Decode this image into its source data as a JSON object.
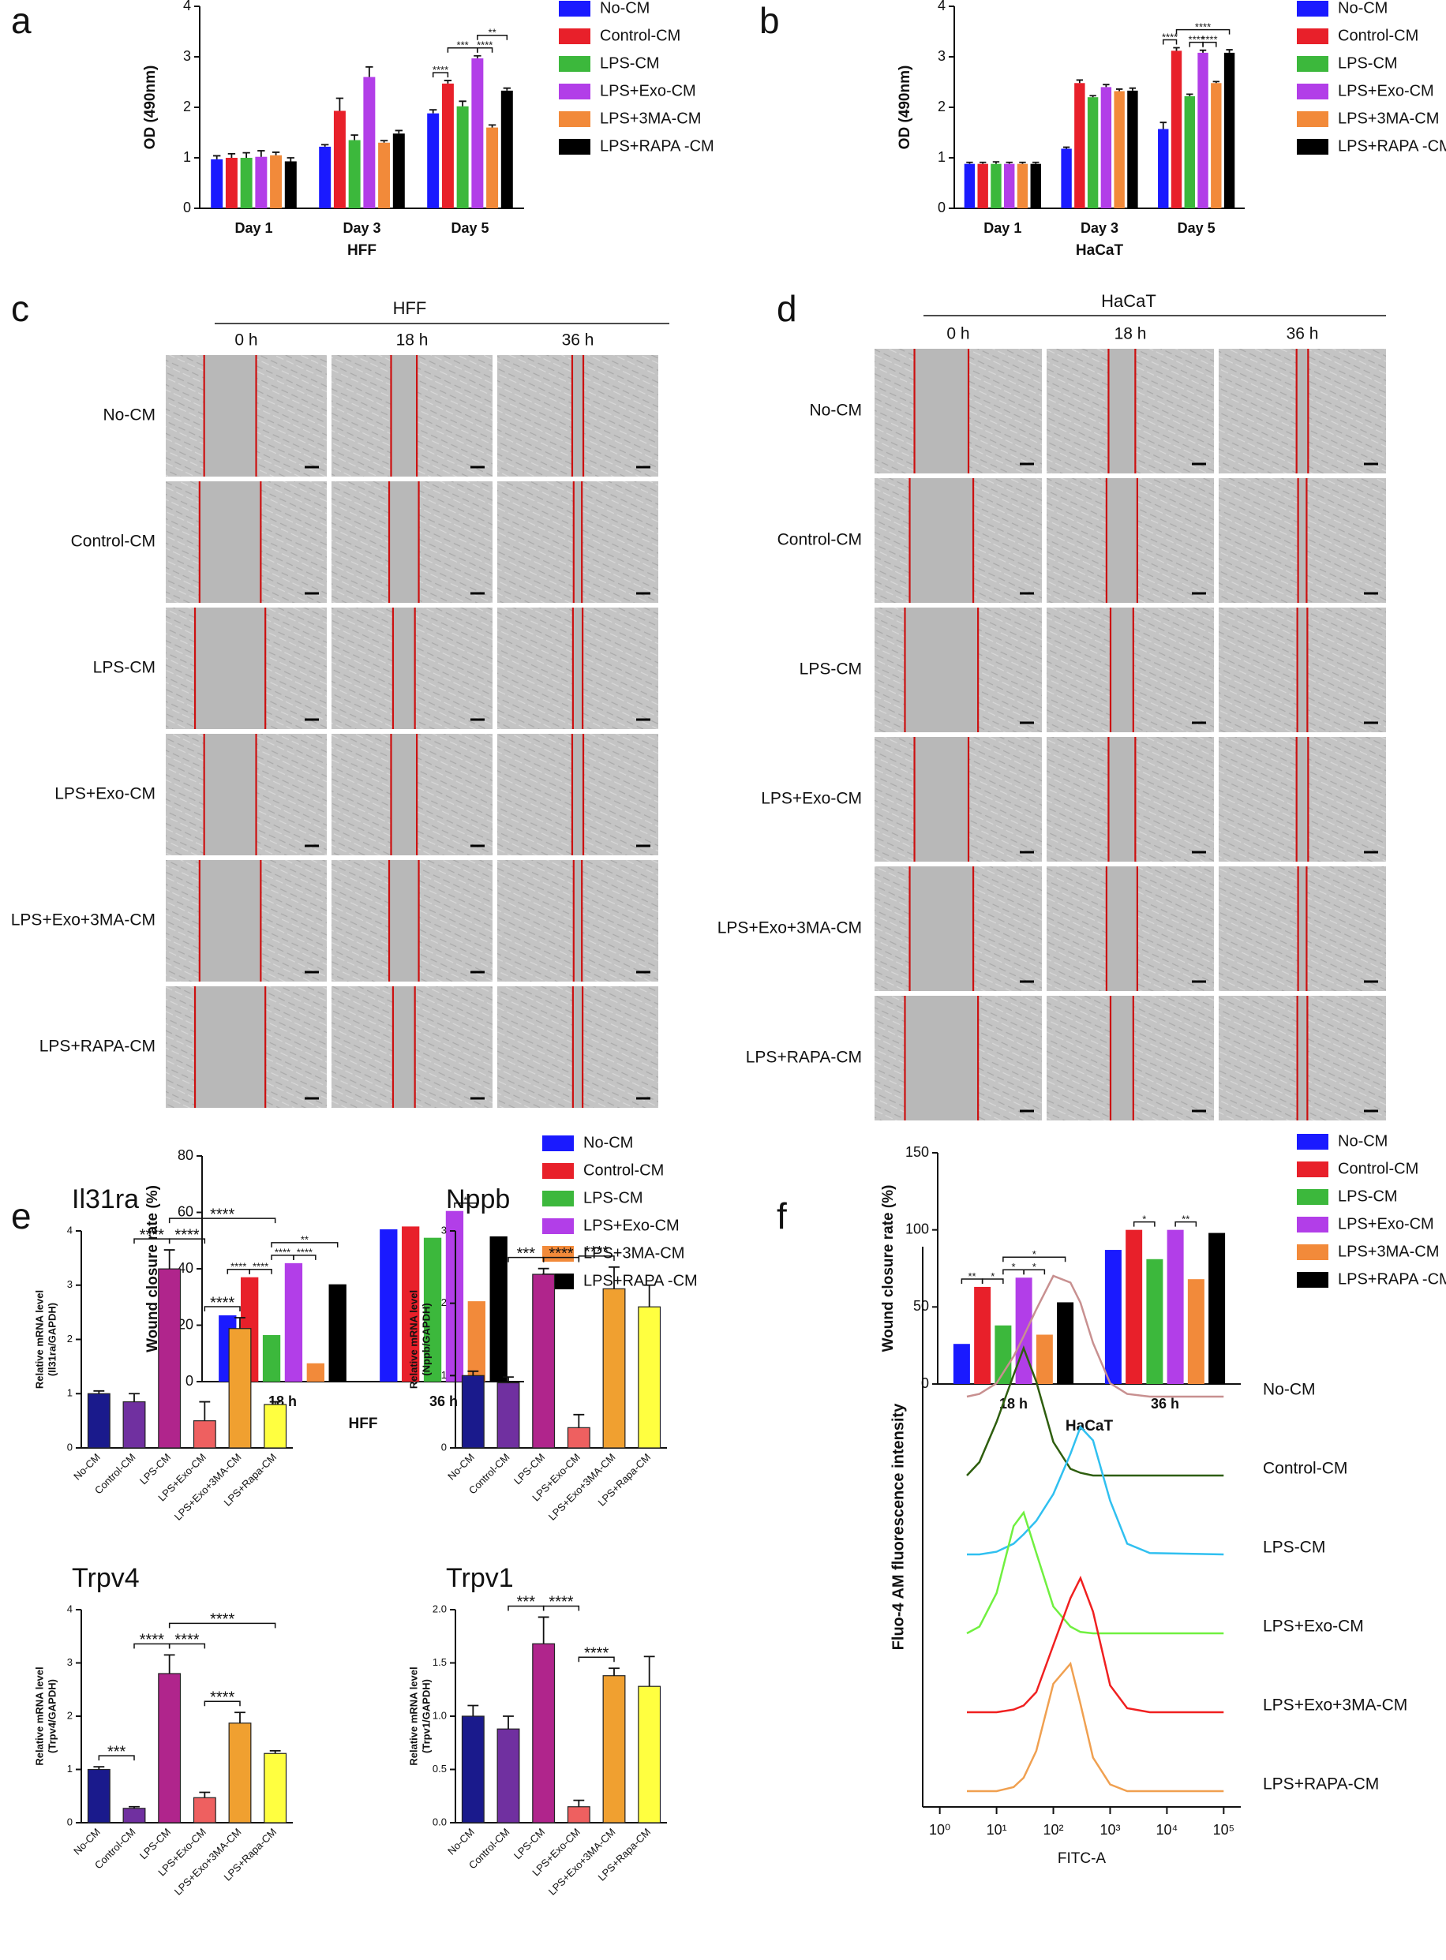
{
  "panel_labels": [
    "a",
    "b",
    "c",
    "d",
    "e",
    "f"
  ],
  "chart_data": [
    {
      "type": "bar",
      "ylabel": "OD (490nm)",
      "xlabel": "HFF",
      "categories": [
        "Day 1",
        "Day 3",
        "Day 5"
      ],
      "ylim": [
        0,
        4
      ],
      "yticks": [
        0,
        1,
        2,
        3,
        4
      ],
      "series": [
        {
          "name": "No-CM",
          "color": "#1a1aff",
          "values": [
            0.97,
            1.22,
            1.88
          ],
          "errors": [
            0.07,
            0.04,
            0.07
          ]
        },
        {
          "name": "Control-CM",
          "color": "#e8202a",
          "values": [
            1.0,
            1.93,
            2.47
          ],
          "errors": [
            0.08,
            0.25,
            0.06
          ]
        },
        {
          "name": "LPS-CM",
          "color": "#3cb83c",
          "values": [
            1.0,
            1.35,
            2.02
          ],
          "errors": [
            0.1,
            0.1,
            0.1
          ]
        },
        {
          "name": "LPS+Exo-CM",
          "color": "#b23ee8",
          "values": [
            1.02,
            2.6,
            2.97
          ],
          "errors": [
            0.12,
            0.2,
            0.05
          ]
        },
        {
          "name": "LPS+3MA-CM",
          "color": "#f28a3a",
          "values": [
            1.05,
            1.3,
            1.6
          ],
          "errors": [
            0.06,
            0.04,
            0.05
          ]
        },
        {
          "name": "LPS+RAPA -CM",
          "color": "#000000",
          "values": [
            0.93,
            1.48,
            2.33
          ],
          "errors": [
            0.07,
            0.06,
            0.05
          ]
        }
      ],
      "annotations": [
        {
          "category": 2,
          "between": [
            0,
            1
          ],
          "text": "****"
        },
        {
          "category": 2,
          "between": [
            1,
            3
          ],
          "text": "***"
        },
        {
          "category": 2,
          "between": [
            3,
            4
          ],
          "text": "****"
        },
        {
          "category": 2,
          "between": [
            3,
            5
          ],
          "text": "**"
        }
      ]
    },
    {
      "type": "bar",
      "ylabel": "OD (490nm)",
      "xlabel": "HaCaT",
      "categories": [
        "Day 1",
        "Day 3",
        "Day 5"
      ],
      "ylim": [
        0,
        4
      ],
      "yticks": [
        0,
        1,
        2,
        3,
        4
      ],
      "series": [
        {
          "name": "No-CM",
          "color": "#1a1aff",
          "values": [
            0.88,
            1.18,
            1.57
          ],
          "errors": [
            0.03,
            0.03,
            0.13
          ]
        },
        {
          "name": "Control-CM",
          "color": "#e8202a",
          "values": [
            0.88,
            2.48,
            3.12
          ],
          "errors": [
            0.03,
            0.06,
            0.06
          ]
        },
        {
          "name": "LPS-CM",
          "color": "#3cb83c",
          "values": [
            0.88,
            2.2,
            2.22
          ],
          "errors": [
            0.04,
            0.03,
            0.04
          ]
        },
        {
          "name": "LPS+Exo-CM",
          "color": "#b23ee8",
          "values": [
            0.88,
            2.4,
            3.08
          ],
          "errors": [
            0.03,
            0.05,
            0.05
          ]
        },
        {
          "name": "LPS+3MA-CM",
          "color": "#f28a3a",
          "values": [
            0.88,
            2.32,
            2.48
          ],
          "errors": [
            0.03,
            0.04,
            0.03
          ]
        },
        {
          "name": "LPS+RAPA -CM",
          "color": "#000000",
          "values": [
            0.88,
            2.33,
            3.08
          ],
          "errors": [
            0.03,
            0.05,
            0.06
          ]
        }
      ],
      "annotations": [
        {
          "category": 2,
          "between": [
            0,
            1
          ],
          "text": "****"
        },
        {
          "category": 2,
          "between": [
            2,
            3
          ],
          "text": "****"
        },
        {
          "category": 2,
          "between": [
            3,
            4
          ],
          "text": "****"
        },
        {
          "category": 2,
          "between": [
            1,
            5
          ],
          "text": "****"
        }
      ]
    },
    {
      "type": "bar",
      "ylabel": "Wound closure rate (%)",
      "xlabel": "HFF",
      "categories": [
        "18 h",
        "36 h"
      ],
      "ylim": [
        0,
        80
      ],
      "yticks": [
        0,
        20,
        40,
        60,
        80
      ],
      "series": [
        {
          "name": "No-CM",
          "color": "#1a1aff",
          "values": [
            23.5,
            54
          ]
        },
        {
          "name": "Control-CM",
          "color": "#e8202a",
          "values": [
            37,
            55
          ]
        },
        {
          "name": "LPS-CM",
          "color": "#3cb83c",
          "values": [
            16.5,
            51
          ]
        },
        {
          "name": "LPS+Exo-CM",
          "color": "#b23ee8",
          "values": [
            42,
            60.5
          ]
        },
        {
          "name": "LPS+3MA-CM",
          "color": "#f28a3a",
          "values": [
            6.5,
            28.5
          ]
        },
        {
          "name": "LPS+RAPA -CM",
          "color": "#000000",
          "values": [
            34.5,
            51.5
          ]
        }
      ],
      "annotations": [
        {
          "category": 0,
          "between": [
            0,
            1
          ],
          "text": "****"
        },
        {
          "category": 0,
          "between": [
            1,
            2
          ],
          "text": "****"
        },
        {
          "category": 0,
          "between": [
            2,
            3
          ],
          "text": "****"
        },
        {
          "category": 0,
          "between": [
            3,
            4
          ],
          "text": "****"
        },
        {
          "category": 0,
          "between": [
            2,
            5
          ],
          "text": "**"
        },
        {
          "category": 1,
          "between": [
            3,
            4
          ],
          "text": "*"
        }
      ]
    },
    {
      "type": "bar",
      "ylabel": "Wound closure rate (%)",
      "xlabel": "HaCaT",
      "categories": [
        "18 h",
        "36 h"
      ],
      "ylim": [
        0,
        150
      ],
      "yticks": [
        0,
        50,
        100,
        150
      ],
      "series": [
        {
          "name": "No-CM",
          "color": "#1a1aff",
          "values": [
            26,
            87
          ]
        },
        {
          "name": "Control-CM",
          "color": "#e8202a",
          "values": [
            63,
            100
          ]
        },
        {
          "name": "LPS-CM",
          "color": "#3cb83c",
          "values": [
            38,
            81
          ]
        },
        {
          "name": "LPS+Exo-CM",
          "color": "#b23ee8",
          "values": [
            69,
            100
          ]
        },
        {
          "name": "LPS+3MA-CM",
          "color": "#f28a3a",
          "values": [
            32,
            68
          ]
        },
        {
          "name": "LPS+RAPA -CM",
          "color": "#000000",
          "values": [
            53,
            98
          ]
        }
      ],
      "annotations": [
        {
          "category": 0,
          "between": [
            0,
            1
          ],
          "text": "**"
        },
        {
          "category": 0,
          "between": [
            1,
            2
          ],
          "text": "*"
        },
        {
          "category": 0,
          "between": [
            2,
            3
          ],
          "text": "*"
        },
        {
          "category": 0,
          "between": [
            3,
            4
          ],
          "text": "*"
        },
        {
          "category": 0,
          "between": [
            2,
            5
          ],
          "text": "*"
        },
        {
          "category": 1,
          "between": [
            1,
            2
          ],
          "text": "*"
        },
        {
          "category": 1,
          "between": [
            3,
            4
          ],
          "text": "**"
        }
      ]
    },
    {
      "type": "bar",
      "title": "Il31ra",
      "ylabel": [
        "Relative mRNA level",
        "(Il31ra/GAPDH)"
      ],
      "categories": [
        "No-CM",
        "Control-CM",
        "LPS-CM",
        "LPS+Exo-CM",
        "LPS+Exo+3MA-CM",
        "LPS+Rapa-CM"
      ],
      "colors": [
        "#1a1a8c",
        "#7030a0",
        "#b0258c",
        "#ee6060",
        "#f0a030",
        "#ffff40"
      ],
      "values": [
        1.0,
        0.85,
        3.3,
        0.5,
        2.2,
        0.8
      ],
      "errors": [
        0.05,
        0.15,
        0.35,
        0.35,
        0.2,
        0.05
      ],
      "ylim": [
        0,
        4
      ],
      "yticks": [
        0,
        1,
        2,
        3,
        4
      ],
      "annotations": [
        {
          "between": [
            1,
            2
          ],
          "text": "****"
        },
        {
          "between": [
            2,
            3
          ],
          "text": "****"
        },
        {
          "between": [
            3,
            4
          ],
          "text": "****"
        },
        {
          "between": [
            2,
            5
          ],
          "text": "****"
        }
      ]
    },
    {
      "type": "bar",
      "title": "Nppb",
      "ylabel": [
        "Relative mRNA level",
        "(Nppb/GAPDH)"
      ],
      "categories": [
        "No-CM",
        "Control-CM",
        "LPS-CM",
        "LPS+Exo-CM",
        "LPS+Exo+3MA-CM",
        "LPS+Rapa-CM"
      ],
      "colors": [
        "#1a1a8c",
        "#7030a0",
        "#b0258c",
        "#ee6060",
        "#f0a030",
        "#ffff40"
      ],
      "values": [
        1.0,
        0.9,
        2.4,
        0.28,
        2.2,
        1.95
      ],
      "errors": [
        0.06,
        0.08,
        0.08,
        0.18,
        0.3,
        0.3
      ],
      "ylim": [
        0,
        3
      ],
      "yticks": [
        0,
        1,
        2,
        3
      ],
      "annotations": [
        {
          "between": [
            1,
            2
          ],
          "text": "***"
        },
        {
          "between": [
            2,
            3
          ],
          "text": "****"
        },
        {
          "between": [
            3,
            4
          ],
          "text": "****"
        }
      ]
    },
    {
      "type": "bar",
      "title": "Trpv4",
      "ylabel": [
        "Relative mRNA level",
        "(Trpv4/GAPDH)"
      ],
      "categories": [
        "No-CM",
        "Control-CM",
        "LPS-CM",
        "LPS+Exo-CM",
        "LPS+Exo+3MA-CM",
        "LPS+Rapa-CM"
      ],
      "colors": [
        "#1a1a8c",
        "#7030a0",
        "#b0258c",
        "#ee6060",
        "#f0a030",
        "#ffff40"
      ],
      "values": [
        1.0,
        0.27,
        2.8,
        0.47,
        1.87,
        1.3
      ],
      "errors": [
        0.05,
        0.03,
        0.35,
        0.1,
        0.2,
        0.05
      ],
      "ylim": [
        0,
        4
      ],
      "yticks": [
        0,
        1,
        2,
        3,
        4
      ],
      "annotations": [
        {
          "between": [
            0,
            1
          ],
          "text": "***"
        },
        {
          "between": [
            1,
            2
          ],
          "text": "****"
        },
        {
          "between": [
            2,
            3
          ],
          "text": "****"
        },
        {
          "between": [
            3,
            4
          ],
          "text": "****"
        },
        {
          "between": [
            2,
            5
          ],
          "text": "****"
        }
      ]
    },
    {
      "type": "bar",
      "title": "Trpv1",
      "ylabel": [
        "Relative mRNA level",
        "(Trpv1/GAPDH)"
      ],
      "categories": [
        "No-CM",
        "Control-CM",
        "LPS-CM",
        "LPS+Exo-CM",
        "LPS+Exo+3MA-CM",
        "LPS+Rapa-CM"
      ],
      "colors": [
        "#1a1a8c",
        "#7030a0",
        "#b0258c",
        "#ee6060",
        "#f0a030",
        "#ffff40"
      ],
      "values": [
        1.0,
        0.88,
        1.68,
        0.15,
        1.38,
        1.28
      ],
      "errors": [
        0.1,
        0.12,
        0.25,
        0.06,
        0.07,
        0.28
      ],
      "ylim": [
        0,
        2.0
      ],
      "yticks": [
        {
          "value": 0,
          "label": "0.0"
        },
        {
          "value": 0.5,
          "label": "0.5"
        },
        {
          "value": 1.0,
          "label": "1.0"
        },
        {
          "value": 1.5,
          "label": "1.5"
        },
        {
          "value": 2.0,
          "label": "2.0"
        }
      ],
      "annotations": [
        {
          "between": [
            1,
            2
          ],
          "text": "***"
        },
        {
          "between": [
            2,
            3
          ],
          "text": "****"
        },
        {
          "between": [
            3,
            4
          ],
          "text": "****"
        }
      ]
    },
    {
      "type": "ridgeline",
      "ylabel": "Fluo-4 AM fluorescence intensity",
      "xlabel": "FITC-A",
      "log_x": true,
      "x": [
        3,
        5,
        10,
        20,
        30,
        50,
        100,
        200,
        300,
        500,
        1000,
        2000,
        5000,
        100000
      ],
      "xlim": [
        0.5,
        200000
      ],
      "xticks": [
        {
          "value": 1,
          "label": "10⁰"
        },
        {
          "value": 10,
          "label": "10¹"
        },
        {
          "value": 100,
          "label": "10²"
        },
        {
          "value": 1000,
          "label": "10³"
        },
        {
          "value": 10000,
          "label": "10⁴"
        },
        {
          "value": 100000,
          "label": "10⁵"
        }
      ],
      "series": [
        {
          "name": "No-CM",
          "color": "#c89090",
          "values": [
            0,
            2,
            10,
            30,
            45,
            65,
            90,
            85,
            70,
            40,
            10,
            2,
            0,
            0
          ]
        },
        {
          "name": "Control-CM",
          "color": "#2e5e0e",
          "values": [
            0,
            10,
            40,
            75,
            95,
            70,
            25,
            5,
            2,
            0,
            0,
            0,
            0,
            0
          ]
        },
        {
          "name": "LPS-CM",
          "color": "#30c0f0",
          "values": [
            0,
            0,
            2,
            8,
            15,
            25,
            45,
            75,
            95,
            85,
            40,
            8,
            1,
            0
          ]
        },
        {
          "name": "LPS+Exo-CM",
          "color": "#70f040",
          "values": [
            0,
            5,
            30,
            80,
            90,
            60,
            20,
            5,
            1,
            0,
            0,
            0,
            0,
            0
          ]
        },
        {
          "name": "LPS+Exo+3MA-CM",
          "color": "#f02020",
          "values": [
            0,
            0,
            0,
            2,
            5,
            15,
            50,
            85,
            100,
            75,
            20,
            3,
            0,
            0
          ]
        },
        {
          "name": "LPS+RAPA-CM",
          "color": "#f0a050",
          "values": [
            0,
            0,
            0,
            3,
            10,
            30,
            80,
            95,
            65,
            25,
            5,
            0,
            0,
            0
          ]
        }
      ]
    }
  ],
  "wound_assays": [
    {
      "title": "HFF",
      "timepoints": [
        "0 h",
        "18 h",
        "36 h"
      ],
      "groups": [
        "No-CM",
        "Control-CM",
        "LPS-CM",
        "LPS+Exo-CM",
        "LPS+Exo+3MA-CM",
        "LPS+RAPA-CM"
      ]
    },
    {
      "title": "HaCaT",
      "timepoints": [
        "0 h",
        "18 h",
        "36 h"
      ],
      "groups": [
        "No-CM",
        "Control-CM",
        "LPS-CM",
        "LPS+Exo-CM",
        "LPS+Exo+3MA-CM",
        "LPS+RAPA-CM"
      ]
    }
  ]
}
